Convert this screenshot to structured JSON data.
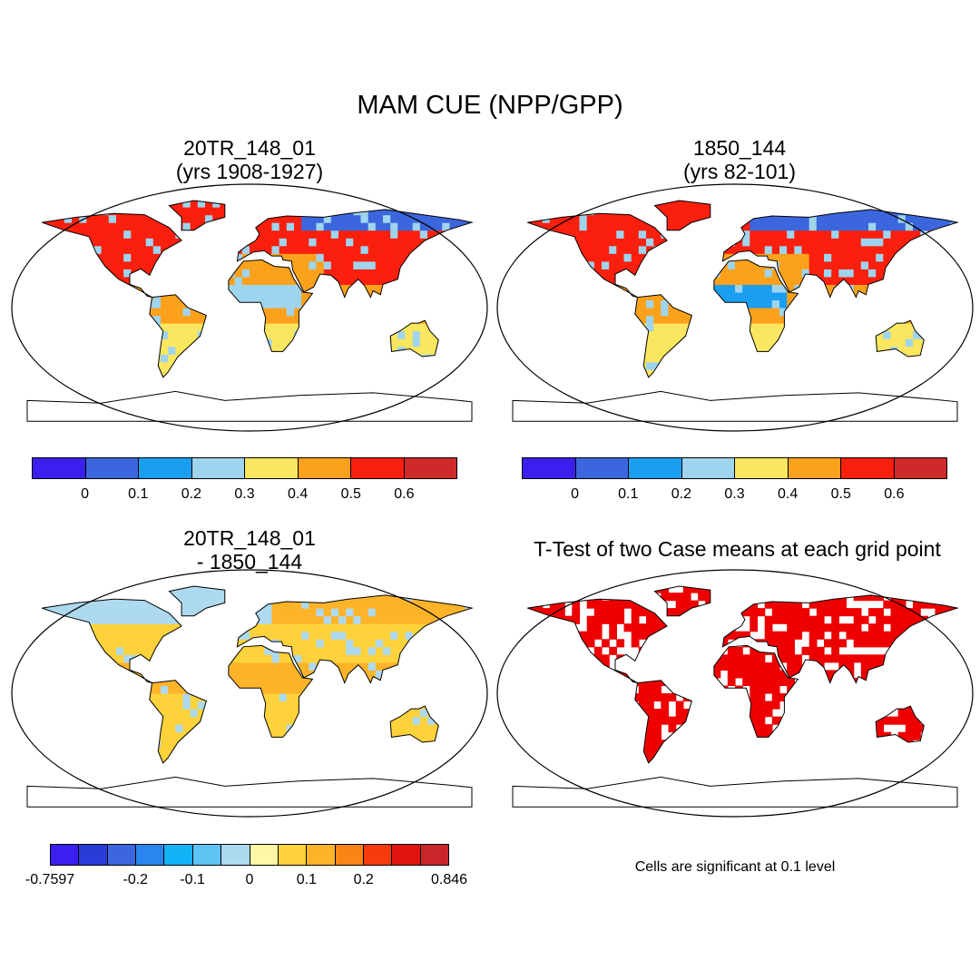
{
  "title": "MAM CUE (NPP/GPP)",
  "panels": [
    {
      "id": "p1",
      "title_line1": "20TR_148_01",
      "title_line2": "(yrs 1908-1927)"
    },
    {
      "id": "p2",
      "title_line1": "1850_144",
      "title_line2": "(yrs 82-101)"
    },
    {
      "id": "p3",
      "title_line1": "20TR_148_01",
      "title_line2": "- 1850_144"
    },
    {
      "id": "p4",
      "title_line1": "T-Test of two Case means at each grid point",
      "title_line2": ""
    }
  ],
  "colorbar_top": {
    "colors": [
      "#3a1ff0",
      "#3c66dd",
      "#1a9ef0",
      "#9fd4ee",
      "#fbe660",
      "#fca11b",
      "#fb1f0d",
      "#cf2a2a"
    ],
    "labels": [
      "0",
      "0.1",
      "0.2",
      "0.3",
      "0.4",
      "0.5",
      "0.6"
    ]
  },
  "colorbar_diff": {
    "colors": [
      "#3a1ff0",
      "#2a3cd8",
      "#3c66dd",
      "#2a86ee",
      "#12b2f6",
      "#5fc4f4",
      "#aedaf0",
      "#fdf7a6",
      "#fdd23a",
      "#fdb429",
      "#fa8515",
      "#f83b0d",
      "#df140e",
      "#c9262a"
    ],
    "labels": [
      "-0.7597",
      "-0.2",
      "-0.1",
      "0",
      "0.1",
      "0.2",
      "0.846"
    ]
  },
  "significance_note": "Cells are significant at 0.1 level",
  "map_colors": {
    "land_outline": "#000000",
    "significant": "#ee0000"
  }
}
